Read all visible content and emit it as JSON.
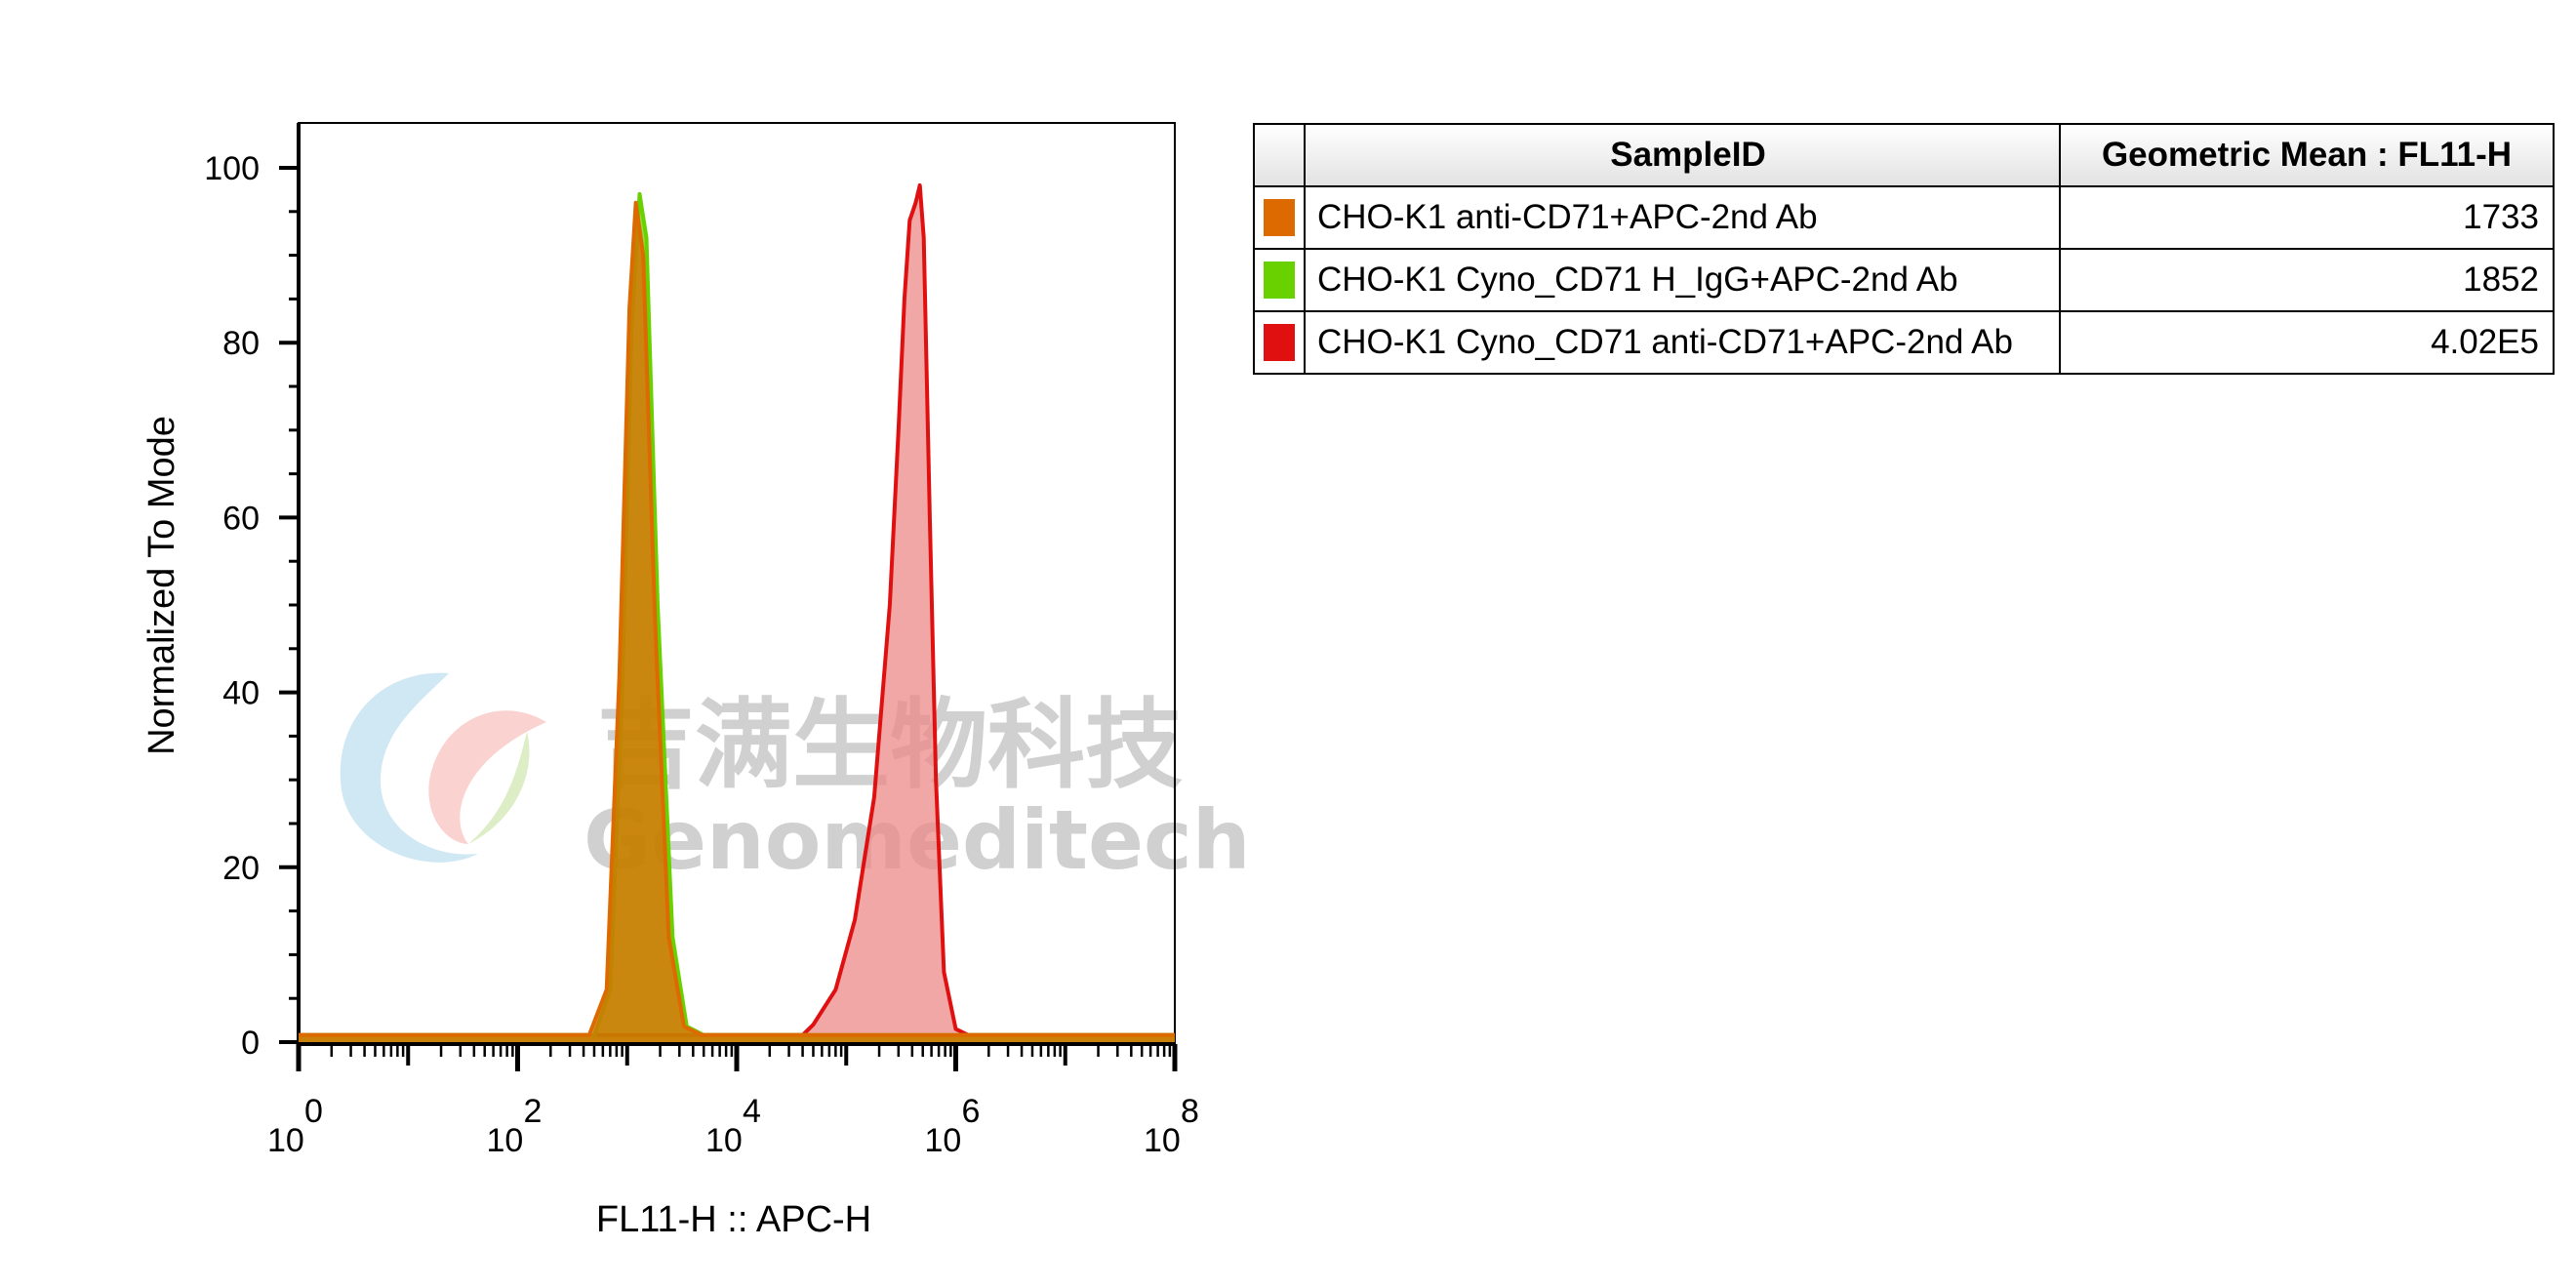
{
  "chart_data": {
    "type": "area",
    "xlabel": "FL11-H :: APC-H",
    "ylabel": "Normalized To Mode",
    "x_scale": "log",
    "xlim": [
      1,
      100000000
    ],
    "ylim": [
      0,
      100
    ],
    "x_ticks": [
      {
        "base": "10",
        "exp": "0"
      },
      {
        "base": "10",
        "exp": "2"
      },
      {
        "base": "10",
        "exp": "4"
      },
      {
        "base": "10",
        "exp": "6"
      },
      {
        "base": "10",
        "exp": "8"
      }
    ],
    "y_ticks": [
      "0",
      "20",
      "40",
      "60",
      "80",
      "100"
    ],
    "grid": false,
    "series": [
      {
        "name": "CHO-K1 Cyno_CD71 anti-CD71+APC-2nd Ab",
        "color": "#e01010",
        "fill": "#ee8a8a",
        "points": [
          [
            1,
            0.8
          ],
          [
            40000,
            0.8
          ],
          [
            50000,
            2
          ],
          [
            80000,
            6
          ],
          [
            120000,
            14
          ],
          [
            180000,
            28
          ],
          [
            250000,
            50
          ],
          [
            300000,
            70
          ],
          [
            340000,
            85
          ],
          [
            380000,
            94
          ],
          [
            430000,
            96
          ],
          [
            470000,
            98
          ],
          [
            510000,
            92
          ],
          [
            580000,
            60
          ],
          [
            660000,
            30
          ],
          [
            780000,
            8
          ],
          [
            1000000,
            1.5
          ],
          [
            1300000,
            0.8
          ],
          [
            100000000,
            0.8
          ]
        ]
      },
      {
        "name": "CHO-K1 Cyno_CD71 H_IgG+APC-2nd Ab",
        "color": "#6ad100",
        "fill": "#6ad100",
        "points": [
          [
            1,
            0.8
          ],
          [
            500,
            0.8
          ],
          [
            700,
            6
          ],
          [
            900,
            40
          ],
          [
            1100,
            82
          ],
          [
            1300,
            97
          ],
          [
            1500,
            92
          ],
          [
            1900,
            50
          ],
          [
            2600,
            12
          ],
          [
            3500,
            1.8
          ],
          [
            5000,
            0.8
          ],
          [
            100000000,
            0.8
          ]
        ]
      },
      {
        "name": "CHO-K1 anti-CD71+APC-2nd Ab",
        "color": "#dd6a00",
        "fill": "#dd6a00",
        "points": [
          [
            1,
            0.8
          ],
          [
            450,
            0.8
          ],
          [
            650,
            6
          ],
          [
            850,
            42
          ],
          [
            1050,
            84
          ],
          [
            1200,
            96
          ],
          [
            1400,
            90
          ],
          [
            1800,
            48
          ],
          [
            2400,
            12
          ],
          [
            3300,
            1.8
          ],
          [
            4800,
            0.8
          ],
          [
            100000000,
            0.8
          ]
        ]
      }
    ]
  },
  "table": {
    "col_sample": "SampleID",
    "col_mean": "Geometric Mean : FL11-H",
    "rows": [
      {
        "color": "#dd6a00",
        "sample": "CHO-K1 anti-CD71+APC-2nd Ab",
        "mean": "1733"
      },
      {
        "color": "#6ad100",
        "sample": "CHO-K1 Cyno_CD71 H_IgG+APC-2nd Ab",
        "mean": "1852"
      },
      {
        "color": "#e01010",
        "sample": "CHO-K1 Cyno_CD71 anti-CD71+APC-2nd Ab",
        "mean": "4.02E5"
      }
    ]
  },
  "watermark": {
    "cn": "吉满生物科技",
    "en": "Genomeditech"
  }
}
